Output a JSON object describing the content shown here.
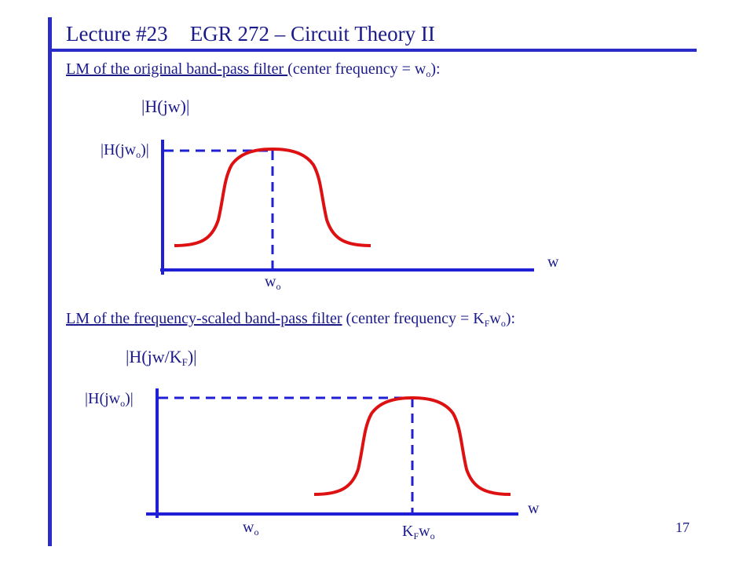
{
  "header": {
    "lecture": "Lecture #23",
    "course": "EGR 272 – Circuit Theory II"
  },
  "section1": {
    "caption_underlined": "LM of the original band-pass filter ",
    "caption_rest": "(center frequency = w",
    "caption_sub": "o",
    "caption_end": "):",
    "y_label": "|H(jw)|",
    "peak_label": "|H(jw",
    "peak_label_sub": "o",
    "peak_label_end": ")|",
    "x_axis_label": "w",
    "center_label": "w",
    "center_label_sub": "o"
  },
  "section2": {
    "caption_underlined": "LM of the frequency-scaled band-pass filter",
    "caption_rest": " (center frequency = K",
    "caption_sub1": "F",
    "caption_mid": "w",
    "caption_sub2": "o",
    "caption_end": "):",
    "y_label": "|H(jw/K",
    "y_label_sub": "F",
    "y_label_end": ")|",
    "peak_label": "|H(jw",
    "peak_label_sub": "o",
    "peak_label_end": ")|",
    "x_axis_label": "w",
    "orig_center_label": "w",
    "orig_center_label_sub": "o",
    "scaled_center_label": "K",
    "scaled_center_label_sub1": "F",
    "scaled_center_label_mid": "w",
    "scaled_center_label_sub2": "o"
  },
  "page_number": "17",
  "colors": {
    "axis": "#1f1fd6",
    "curve": "#dd1111",
    "text": "#1a1a8a"
  }
}
